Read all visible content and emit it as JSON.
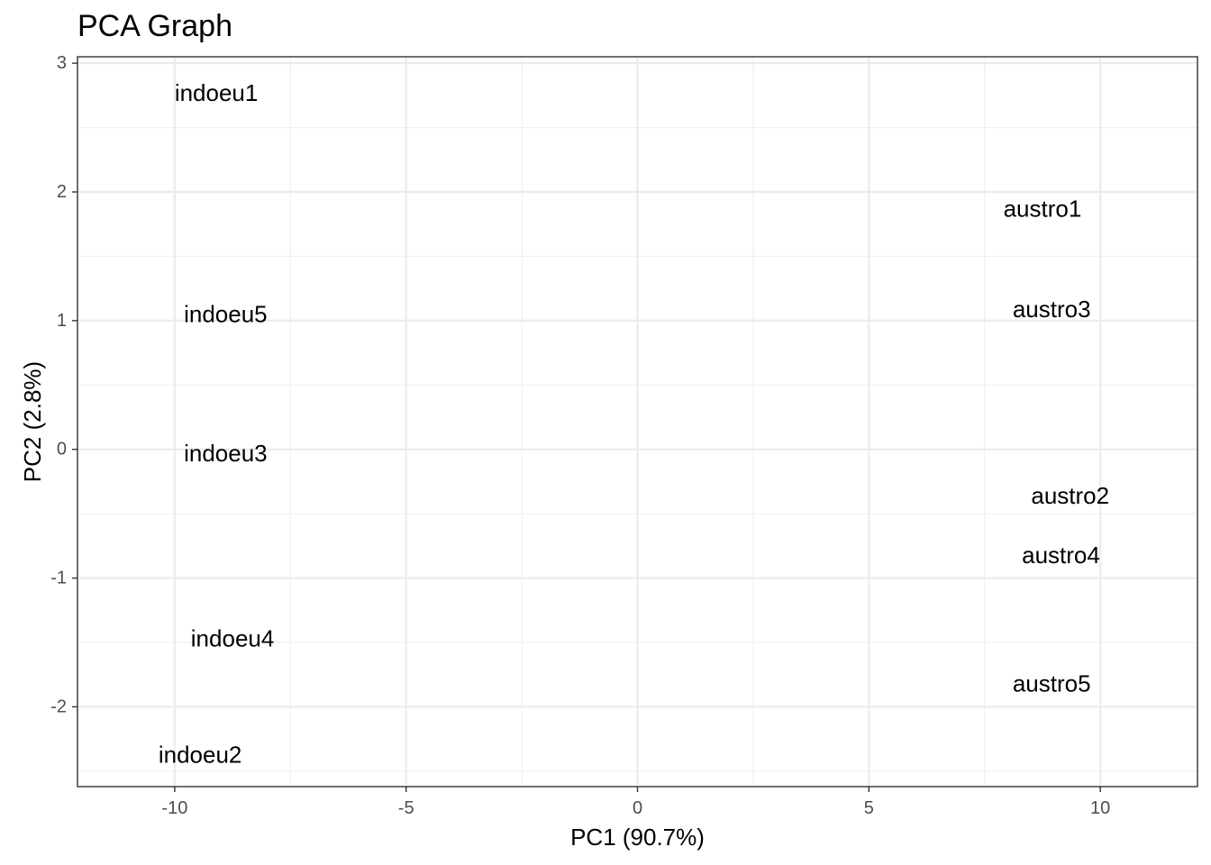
{
  "chart_data": {
    "type": "scatter",
    "title": "PCA Graph",
    "xlabel": "PC1 (90.7%)",
    "ylabel": "PC2 (2.8%)",
    "xlim": [
      -12.1,
      12.1
    ],
    "ylim": [
      -2.62,
      3.05
    ],
    "xticks": [
      -10,
      -5,
      0,
      5,
      10
    ],
    "xtick_labels": [
      "-10",
      "-5",
      "0",
      "5",
      "10"
    ],
    "yticks": [
      -2,
      -1,
      0,
      1,
      2,
      3
    ],
    "ytick_labels": [
      "-2",
      "-1",
      "0",
      "1",
      "2",
      "3"
    ],
    "grid": true,
    "points": [
      {
        "label": "indoeu1",
        "x": -9.1,
        "y": 2.77
      },
      {
        "label": "indoeu5",
        "x": -8.9,
        "y": 1.05
      },
      {
        "label": "indoeu3",
        "x": -8.9,
        "y": -0.03
      },
      {
        "label": "indoeu4",
        "x": -8.75,
        "y": -1.47
      },
      {
        "label": "indoeu2",
        "x": -9.45,
        "y": -2.37
      },
      {
        "label": "austro1",
        "x": 8.75,
        "y": 1.87
      },
      {
        "label": "austro3",
        "x": 8.95,
        "y": 1.09
      },
      {
        "label": "austro2",
        "x": 9.35,
        "y": -0.36
      },
      {
        "label": "austro4",
        "x": 9.15,
        "y": -0.82
      },
      {
        "label": "austro5",
        "x": 8.95,
        "y": -1.82
      }
    ]
  }
}
